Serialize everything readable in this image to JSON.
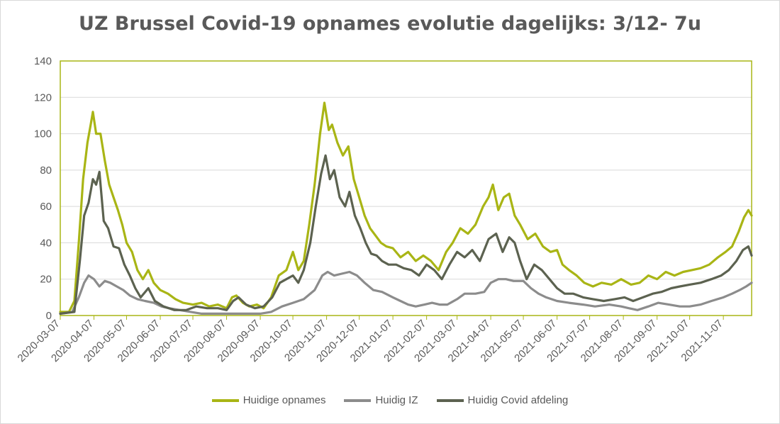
{
  "chart_data": {
    "type": "line",
    "title": "UZ Brussel Covid-19 opnames evolutie dagelijks: 3/12- 7u",
    "xlabel": "",
    "ylabel": "",
    "x_range": [
      "2020-03-07",
      "2021-12-03"
    ],
    "ylim": [
      0,
      140
    ],
    "yticks": [
      0,
      20,
      40,
      60,
      80,
      100,
      120,
      140
    ],
    "xticks": [
      "2020-03-07",
      "2020-04-07",
      "2020-05-07",
      "2020-06-07",
      "2020-07-07",
      "2020-08-07",
      "2020-09-07",
      "2020-10-07",
      "2020-11-07",
      "2020-12-07",
      "2021-01-07",
      "2021-02-07",
      "2021-03-07",
      "2021-04-07",
      "2021-05-07",
      "2021-06-07",
      "2021-07-07",
      "2021-08-07",
      "2021-09-07",
      "2021-10-07",
      "2021-11-07"
    ],
    "grid": true,
    "legend_position": "bottom",
    "series": [
      {
        "name": "Huidige opnames",
        "color": "#a9b515",
        "points": [
          [
            "2020-03-07",
            2
          ],
          [
            "2020-03-15",
            2
          ],
          [
            "2020-03-20",
            8
          ],
          [
            "2020-03-24",
            40
          ],
          [
            "2020-03-28",
            75
          ],
          [
            "2020-04-01",
            95
          ],
          [
            "2020-04-04",
            105
          ],
          [
            "2020-04-06",
            112
          ],
          [
            "2020-04-09",
            100
          ],
          [
            "2020-04-13",
            100
          ],
          [
            "2020-04-17",
            85
          ],
          [
            "2020-04-21",
            72
          ],
          [
            "2020-04-25",
            65
          ],
          [
            "2020-04-29",
            58
          ],
          [
            "2020-05-03",
            50
          ],
          [
            "2020-05-07",
            40
          ],
          [
            "2020-05-12",
            35
          ],
          [
            "2020-05-17",
            25
          ],
          [
            "2020-05-22",
            20
          ],
          [
            "2020-05-27",
            25
          ],
          [
            "2020-06-01",
            18
          ],
          [
            "2020-06-07",
            14
          ],
          [
            "2020-06-14",
            12
          ],
          [
            "2020-06-21",
            9
          ],
          [
            "2020-06-28",
            7
          ],
          [
            "2020-07-07",
            6
          ],
          [
            "2020-07-15",
            7
          ],
          [
            "2020-07-22",
            5
          ],
          [
            "2020-07-30",
            6
          ],
          [
            "2020-08-07",
            4
          ],
          [
            "2020-08-12",
            10
          ],
          [
            "2020-08-16",
            11
          ],
          [
            "2020-08-22",
            7
          ],
          [
            "2020-08-28",
            5
          ],
          [
            "2020-09-04",
            6
          ],
          [
            "2020-09-10",
            4
          ],
          [
            "2020-09-17",
            10
          ],
          [
            "2020-09-24",
            22
          ],
          [
            "2020-10-01",
            25
          ],
          [
            "2020-10-07",
            35
          ],
          [
            "2020-10-12",
            25
          ],
          [
            "2020-10-17",
            30
          ],
          [
            "2020-10-22",
            50
          ],
          [
            "2020-10-27",
            72
          ],
          [
            "2020-11-01",
            100
          ],
          [
            "2020-11-05",
            117
          ],
          [
            "2020-11-09",
            102
          ],
          [
            "2020-11-12",
            105
          ],
          [
            "2020-11-17",
            95
          ],
          [
            "2020-11-22",
            88
          ],
          [
            "2020-11-27",
            93
          ],
          [
            "2020-12-02",
            75
          ],
          [
            "2020-12-07",
            65
          ],
          [
            "2020-12-12",
            55
          ],
          [
            "2020-12-17",
            48
          ],
          [
            "2020-12-22",
            44
          ],
          [
            "2020-12-27",
            40
          ],
          [
            "2021-01-01",
            38
          ],
          [
            "2021-01-07",
            37
          ],
          [
            "2021-01-14",
            32
          ],
          [
            "2021-01-21",
            35
          ],
          [
            "2021-01-28",
            30
          ],
          [
            "2021-02-04",
            33
          ],
          [
            "2021-02-11",
            30
          ],
          [
            "2021-02-18",
            25
          ],
          [
            "2021-02-25",
            35
          ],
          [
            "2021-03-03",
            40
          ],
          [
            "2021-03-10",
            48
          ],
          [
            "2021-03-17",
            45
          ],
          [
            "2021-03-24",
            50
          ],
          [
            "2021-03-31",
            60
          ],
          [
            "2021-04-05",
            65
          ],
          [
            "2021-04-09",
            72
          ],
          [
            "2021-04-14",
            58
          ],
          [
            "2021-04-19",
            65
          ],
          [
            "2021-04-24",
            67
          ],
          [
            "2021-04-29",
            55
          ],
          [
            "2021-05-04",
            50
          ],
          [
            "2021-05-11",
            42
          ],
          [
            "2021-05-18",
            45
          ],
          [
            "2021-05-25",
            38
          ],
          [
            "2021-06-01",
            35
          ],
          [
            "2021-06-07",
            36
          ],
          [
            "2021-06-12",
            28
          ],
          [
            "2021-06-18",
            25
          ],
          [
            "2021-06-25",
            22
          ],
          [
            "2021-07-02",
            18
          ],
          [
            "2021-07-10",
            16
          ],
          [
            "2021-07-18",
            18
          ],
          [
            "2021-07-27",
            17
          ],
          [
            "2021-08-05",
            20
          ],
          [
            "2021-08-14",
            17
          ],
          [
            "2021-08-22",
            18
          ],
          [
            "2021-08-30",
            22
          ],
          [
            "2021-09-07",
            20
          ],
          [
            "2021-09-15",
            24
          ],
          [
            "2021-09-23",
            22
          ],
          [
            "2021-10-01",
            24
          ],
          [
            "2021-10-09",
            25
          ],
          [
            "2021-10-17",
            26
          ],
          [
            "2021-10-25",
            28
          ],
          [
            "2021-11-02",
            32
          ],
          [
            "2021-11-09",
            35
          ],
          [
            "2021-11-15",
            38
          ],
          [
            "2021-11-21",
            46
          ],
          [
            "2021-11-26",
            54
          ],
          [
            "2021-11-30",
            58
          ],
          [
            "2021-12-03",
            55
          ]
        ]
      },
      {
        "name": "Huidig IZ",
        "color": "#8c8c8c",
        "points": [
          [
            "2020-03-07",
            1
          ],
          [
            "2020-03-18",
            2
          ],
          [
            "2020-03-24",
            10
          ],
          [
            "2020-03-29",
            18
          ],
          [
            "2020-04-02",
            22
          ],
          [
            "2020-04-07",
            20
          ],
          [
            "2020-04-12",
            16
          ],
          [
            "2020-04-17",
            19
          ],
          [
            "2020-04-22",
            18
          ],
          [
            "2020-04-28",
            16
          ],
          [
            "2020-05-04",
            14
          ],
          [
            "2020-05-10",
            11
          ],
          [
            "2020-05-17",
            9
          ],
          [
            "2020-05-24",
            8
          ],
          [
            "2020-06-01",
            7
          ],
          [
            "2020-06-08",
            5
          ],
          [
            "2020-06-15",
            4
          ],
          [
            "2020-06-25",
            3
          ],
          [
            "2020-07-05",
            2
          ],
          [
            "2020-07-15",
            1
          ],
          [
            "2020-07-30",
            1
          ],
          [
            "2020-08-10",
            1
          ],
          [
            "2020-08-25",
            1
          ],
          [
            "2020-09-07",
            1
          ],
          [
            "2020-09-17",
            2
          ],
          [
            "2020-09-27",
            5
          ],
          [
            "2020-10-07",
            7
          ],
          [
            "2020-10-17",
            9
          ],
          [
            "2020-10-27",
            14
          ],
          [
            "2020-11-03",
            22
          ],
          [
            "2020-11-08",
            24
          ],
          [
            "2020-11-14",
            22
          ],
          [
            "2020-11-21",
            23
          ],
          [
            "2020-11-28",
            24
          ],
          [
            "2020-12-05",
            22
          ],
          [
            "2020-12-12",
            18
          ],
          [
            "2020-12-20",
            14
          ],
          [
            "2020-12-28",
            13
          ],
          [
            "2021-01-07",
            10
          ],
          [
            "2021-01-14",
            8
          ],
          [
            "2021-01-21",
            6
          ],
          [
            "2021-01-28",
            5
          ],
          [
            "2021-02-05",
            6
          ],
          [
            "2021-02-12",
            7
          ],
          [
            "2021-02-19",
            6
          ],
          [
            "2021-02-26",
            6
          ],
          [
            "2021-03-07",
            9
          ],
          [
            "2021-03-14",
            12
          ],
          [
            "2021-03-24",
            12
          ],
          [
            "2021-04-01",
            13
          ],
          [
            "2021-04-07",
            18
          ],
          [
            "2021-04-14",
            20
          ],
          [
            "2021-04-21",
            20
          ],
          [
            "2021-04-28",
            19
          ],
          [
            "2021-05-07",
            19
          ],
          [
            "2021-05-14",
            15
          ],
          [
            "2021-05-21",
            12
          ],
          [
            "2021-05-28",
            10
          ],
          [
            "2021-06-07",
            8
          ],
          [
            "2021-06-18",
            7
          ],
          [
            "2021-07-01",
            6
          ],
          [
            "2021-07-12",
            5
          ],
          [
            "2021-07-25",
            6
          ],
          [
            "2021-08-05",
            5
          ],
          [
            "2021-08-12",
            4
          ],
          [
            "2021-08-20",
            3
          ],
          [
            "2021-08-30",
            5
          ],
          [
            "2021-09-08",
            7
          ],
          [
            "2021-09-18",
            6
          ],
          [
            "2021-09-28",
            5
          ],
          [
            "2021-10-07",
            5
          ],
          [
            "2021-10-17",
            6
          ],
          [
            "2021-10-27",
            8
          ],
          [
            "2021-11-07",
            10
          ],
          [
            "2021-11-15",
            12
          ],
          [
            "2021-11-22",
            14
          ],
          [
            "2021-11-28",
            16
          ],
          [
            "2021-12-03",
            18
          ]
        ]
      },
      {
        "name": "Huidig Covid afdeling",
        "color": "#5c6250",
        "points": [
          [
            "2020-03-07",
            1
          ],
          [
            "2020-03-20",
            2
          ],
          [
            "2020-03-25",
            30
          ],
          [
            "2020-03-29",
            55
          ],
          [
            "2020-04-02",
            62
          ],
          [
            "2020-04-06",
            75
          ],
          [
            "2020-04-09",
            72
          ],
          [
            "2020-04-12",
            79
          ],
          [
            "2020-04-16",
            52
          ],
          [
            "2020-04-20",
            48
          ],
          [
            "2020-04-25",
            38
          ],
          [
            "2020-04-30",
            37
          ],
          [
            "2020-05-05",
            28
          ],
          [
            "2020-05-10",
            22
          ],
          [
            "2020-05-15",
            15
          ],
          [
            "2020-05-20",
            10
          ],
          [
            "2020-05-27",
            15
          ],
          [
            "2020-06-02",
            8
          ],
          [
            "2020-06-10",
            5
          ],
          [
            "2020-06-20",
            3
          ],
          [
            "2020-07-01",
            3
          ],
          [
            "2020-07-10",
            5
          ],
          [
            "2020-07-20",
            4
          ],
          [
            "2020-07-30",
            4
          ],
          [
            "2020-08-07",
            3
          ],
          [
            "2020-08-13",
            8
          ],
          [
            "2020-08-18",
            10
          ],
          [
            "2020-08-25",
            6
          ],
          [
            "2020-09-02",
            4
          ],
          [
            "2020-09-10",
            5
          ],
          [
            "2020-09-18",
            10
          ],
          [
            "2020-09-25",
            18
          ],
          [
            "2020-10-01",
            20
          ],
          [
            "2020-10-07",
            22
          ],
          [
            "2020-10-12",
            18
          ],
          [
            "2020-10-17",
            25
          ],
          [
            "2020-10-23",
            40
          ],
          [
            "2020-10-28",
            60
          ],
          [
            "2020-11-02",
            78
          ],
          [
            "2020-11-06",
            88
          ],
          [
            "2020-11-10",
            75
          ],
          [
            "2020-11-14",
            80
          ],
          [
            "2020-11-19",
            65
          ],
          [
            "2020-11-24",
            60
          ],
          [
            "2020-11-28",
            68
          ],
          [
            "2020-12-03",
            55
          ],
          [
            "2020-12-08",
            48
          ],
          [
            "2020-12-13",
            40
          ],
          [
            "2020-12-18",
            34
          ],
          [
            "2020-12-23",
            33
          ],
          [
            "2020-12-28",
            30
          ],
          [
            "2021-01-03",
            28
          ],
          [
            "2021-01-10",
            28
          ],
          [
            "2021-01-17",
            26
          ],
          [
            "2021-01-24",
            25
          ],
          [
            "2021-01-31",
            22
          ],
          [
            "2021-02-07",
            28
          ],
          [
            "2021-02-14",
            25
          ],
          [
            "2021-02-21",
            20
          ],
          [
            "2021-02-28",
            28
          ],
          [
            "2021-03-07",
            35
          ],
          [
            "2021-03-14",
            32
          ],
          [
            "2021-03-21",
            36
          ],
          [
            "2021-03-28",
            30
          ],
          [
            "2021-04-05",
            42
          ],
          [
            "2021-04-12",
            45
          ],
          [
            "2021-04-18",
            35
          ],
          [
            "2021-04-24",
            43
          ],
          [
            "2021-04-29",
            40
          ],
          [
            "2021-05-04",
            30
          ],
          [
            "2021-05-10",
            20
          ],
          [
            "2021-05-17",
            28
          ],
          [
            "2021-05-24",
            25
          ],
          [
            "2021-05-31",
            20
          ],
          [
            "2021-06-07",
            15
          ],
          [
            "2021-06-14",
            12
          ],
          [
            "2021-06-22",
            12
          ],
          [
            "2021-07-01",
            10
          ],
          [
            "2021-07-10",
            9
          ],
          [
            "2021-07-20",
            8
          ],
          [
            "2021-07-30",
            9
          ],
          [
            "2021-08-08",
            10
          ],
          [
            "2021-08-16",
            8
          ],
          [
            "2021-08-25",
            10
          ],
          [
            "2021-09-03",
            12
          ],
          [
            "2021-09-11",
            13
          ],
          [
            "2021-09-20",
            15
          ],
          [
            "2021-09-28",
            16
          ],
          [
            "2021-10-07",
            17
          ],
          [
            "2021-10-17",
            18
          ],
          [
            "2021-10-27",
            20
          ],
          [
            "2021-11-05",
            22
          ],
          [
            "2021-11-12",
            25
          ],
          [
            "2021-11-19",
            30
          ],
          [
            "2021-11-25",
            36
          ],
          [
            "2021-11-30",
            38
          ],
          [
            "2021-12-03",
            33
          ]
        ]
      }
    ]
  }
}
